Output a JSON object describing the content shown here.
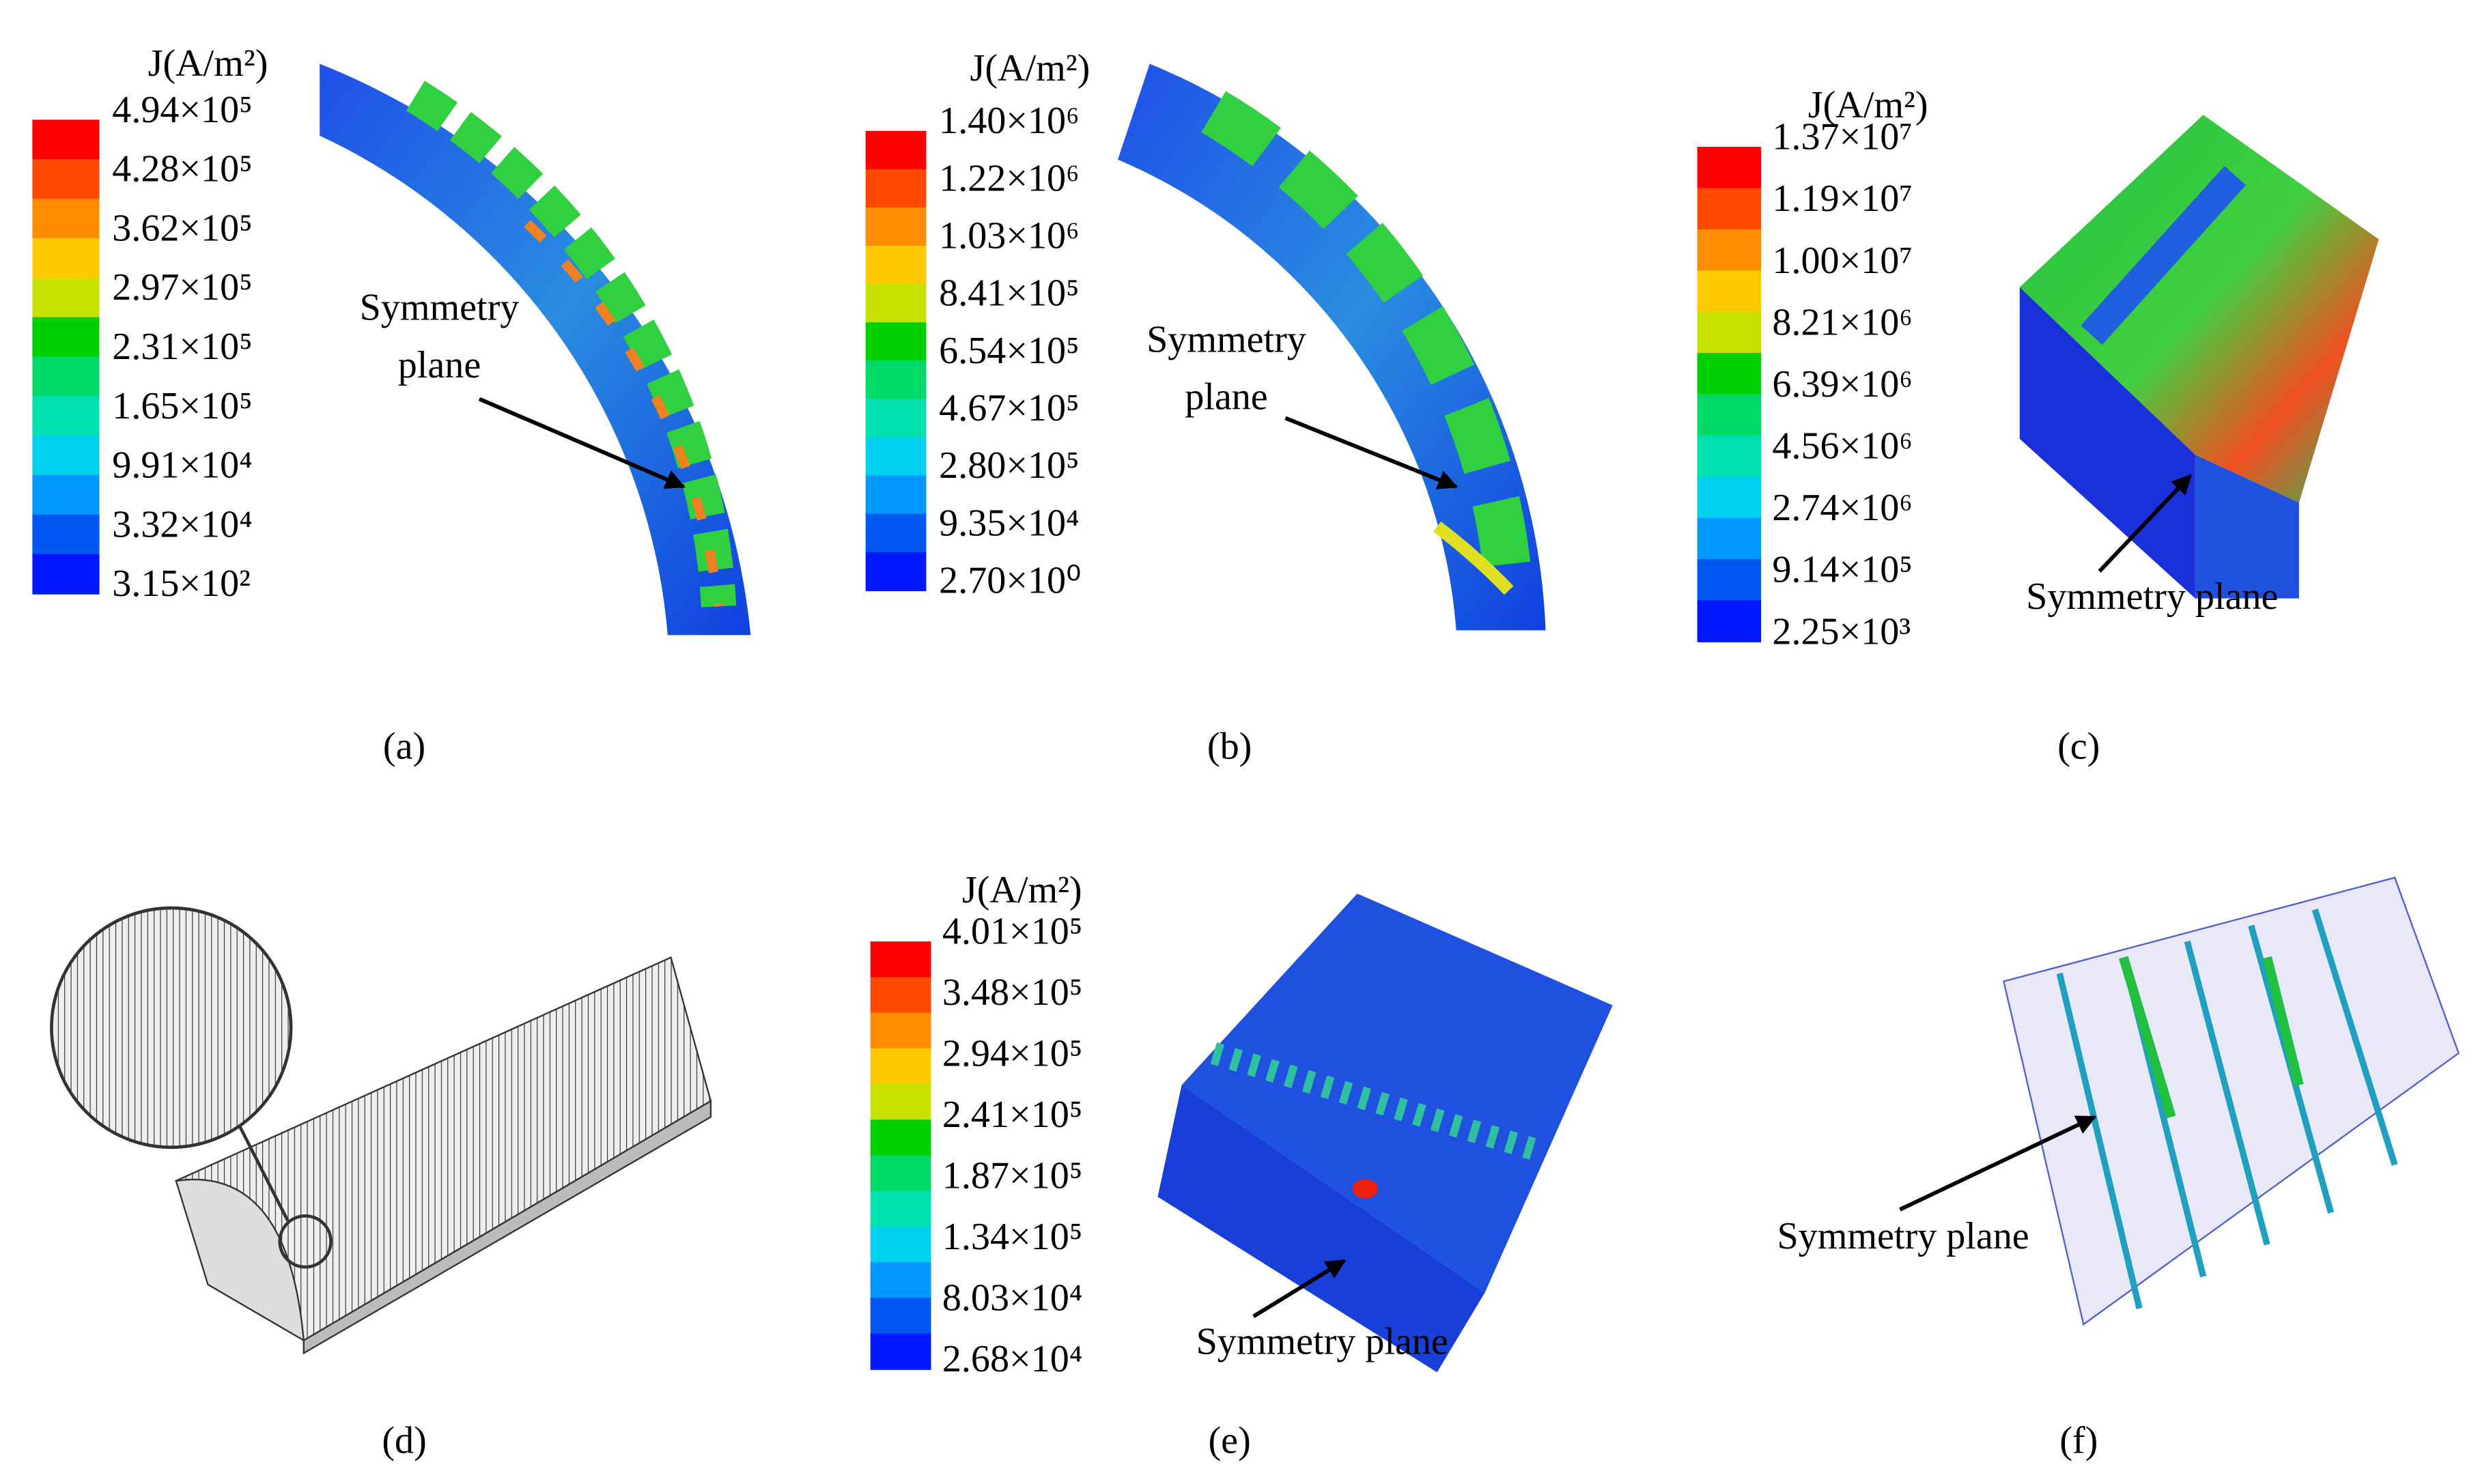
{
  "panels": [
    {
      "label": "(a)",
      "colorbar": {
        "title": "J(A/m²)",
        "labels": [
          "4.94×10⁵",
          "4.28×10⁵",
          "3.62×10⁵",
          "2.97×10⁵",
          "2.31×10⁵",
          "1.65×10⁵",
          "9.91×10⁴",
          "3.32×10⁴",
          "3.15×10²"
        ]
      },
      "annotation": [
        "Symmetry",
        "plane"
      ]
    },
    {
      "label": "(b)",
      "colorbar": {
        "title": "J(A/m²)",
        "labels": [
          "1.40×10⁶",
          "1.22×10⁶",
          "1.03×10⁶",
          "8.41×10⁵",
          "6.54×10⁵",
          "4.67×10⁵",
          "2.80×10⁵",
          "9.35×10⁴",
          "2.70×10⁰"
        ]
      },
      "annotation": [
        "Symmetry",
        "plane"
      ]
    },
    {
      "label": "(c)",
      "colorbar": {
        "title": "J(A/m²)",
        "labels": [
          "1.37×10⁷",
          "1.19×10⁷",
          "1.00×10⁷",
          "8.21×10⁶",
          "6.39×10⁶",
          "4.56×10⁶",
          "2.74×10⁶",
          "9.14×10⁵",
          "2.25×10³"
        ]
      },
      "annotation": [
        "Symmetry plane"
      ]
    },
    {
      "label": "(d)"
    },
    {
      "label": "(e)",
      "colorbar": {
        "title": "J(A/m²)",
        "labels": [
          "4.01×10⁵",
          "3.48×10⁵",
          "2.94×10⁵",
          "2.41×10⁵",
          "1.87×10⁵",
          "1.34×10⁵",
          "8.03×10⁴",
          "2.68×10⁴"
        ]
      },
      "annotation": [
        "Symmetry plane"
      ]
    },
    {
      "label": "(f)",
      "annotation": [
        "Symmetry plane"
      ]
    }
  ]
}
